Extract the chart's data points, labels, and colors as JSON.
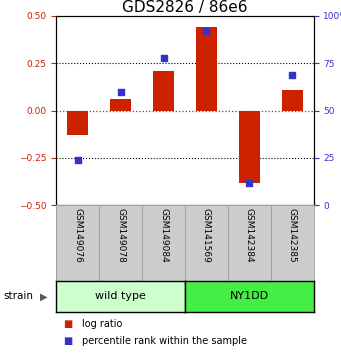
{
  "title": "GDS2826 / 86e6",
  "samples": [
    "GSM149076",
    "GSM149078",
    "GSM149084",
    "GSM141569",
    "GSM142384",
    "GSM142385"
  ],
  "log_ratio": [
    -0.13,
    0.06,
    0.21,
    0.44,
    -0.38,
    0.11
  ],
  "percentile_rank": [
    24,
    60,
    78,
    92,
    12,
    69
  ],
  "ylim_left": [
    -0.5,
    0.5
  ],
  "ylim_right": [
    0,
    100
  ],
  "yticks_left": [
    -0.5,
    -0.25,
    0,
    0.25,
    0.5
  ],
  "yticks_right": [
    0,
    25,
    50,
    75,
    100
  ],
  "bar_color": "#cc2200",
  "dot_color": "#3333cc",
  "zero_line_color": "#cc2200",
  "groups": [
    {
      "label": "wild type",
      "n": 3,
      "color": "#ccffcc"
    },
    {
      "label": "NY1DD",
      "n": 3,
      "color": "#44ee44"
    }
  ],
  "tick_label_area_color": "#cccccc",
  "legend_log_ratio": "log ratio",
  "legend_percentile": "percentile rank within the sample",
  "strain_label": "strain",
  "background_color": "#ffffff",
  "bar_width": 0.5,
  "dot_size": 22,
  "figsize": [
    3.41,
    3.54
  ],
  "dpi": 100,
  "title_fontsize": 11,
  "tick_fontsize": 6.5,
  "legend_fontsize": 7,
  "group_label_fontsize": 8,
  "sample_fontsize": 6.5
}
